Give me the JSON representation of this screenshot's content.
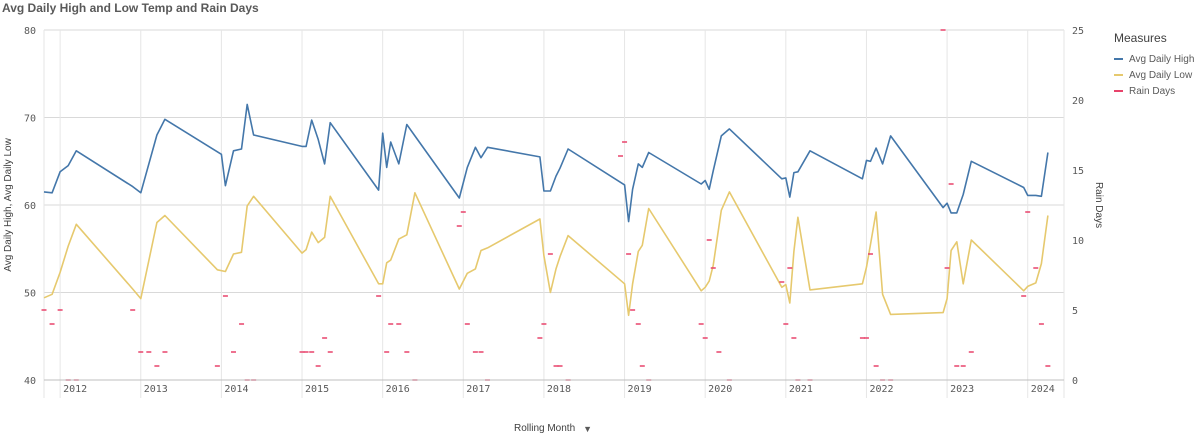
{
  "title": "Avg Daily High and Low Temp and Rain Days",
  "legend": {
    "title": "Measures",
    "items": [
      {
        "label": "Avg Daily High",
        "color": "#4477aa"
      },
      {
        "label": "Avg Daily Low",
        "color": "#e6c96e"
      },
      {
        "label": "Rain Days",
        "color": "#e8436b"
      }
    ]
  },
  "x_axis_label": "Rolling Month",
  "chart_data": {
    "type": "line",
    "title": "Avg Daily High and Low Temp and Rain Days",
    "xlabel": "Rolling Month",
    "ylabel": "Avg Daily High, Avg Daily Low",
    "y2label": "Rain Days",
    "ylim": [
      40,
      80
    ],
    "y2lim": [
      0,
      25
    ],
    "yticks": [
      40,
      50,
      60,
      70,
      80
    ],
    "y2ticks": [
      0,
      5,
      10,
      15,
      20,
      25
    ],
    "xlim": [
      2011.8,
      2024.45
    ],
    "x_ticks": [
      2012,
      2013,
      2014,
      2015,
      2016,
      2017,
      2018,
      2019,
      2020,
      2021,
      2022,
      2023,
      2024
    ],
    "x_tick_labels": [
      "2012",
      "2013",
      "2014",
      "2015",
      "2016",
      "2017",
      "2018",
      "2019",
      "2020",
      "2021",
      "2022",
      "2023",
      "2024"
    ],
    "grid": true,
    "legend_position": "right",
    "series": [
      {
        "name": "Avg Daily High",
        "axis": "left",
        "style": "line",
        "color": "#4477aa",
        "x": [
          2011.8,
          2011.9,
          2012.0,
          2012.1,
          2012.2,
          2012.9,
          2013.0,
          2013.2,
          2013.3,
          2014.0,
          2014.05,
          2014.15,
          2014.25,
          2014.32,
          2014.4,
          2015.0,
          2015.05,
          2015.12,
          2015.2,
          2015.28,
          2015.35,
          2015.95,
          2016.0,
          2016.05,
          2016.1,
          2016.2,
          2016.3,
          2016.4,
          2016.95,
          2017.05,
          2017.15,
          2017.22,
          2017.3,
          2017.95,
          2018.0,
          2018.08,
          2018.15,
          2018.2,
          2018.3,
          2019.0,
          2019.05,
          2019.1,
          2019.17,
          2019.22,
          2019.3,
          2019.95,
          2020.0,
          2020.05,
          2020.1,
          2020.2,
          2020.3,
          2020.95,
          2021.0,
          2021.05,
          2021.1,
          2021.15,
          2021.3,
          2021.95,
          2022.0,
          2022.05,
          2022.12,
          2022.2,
          2022.3,
          2022.95,
          2023.0,
          2023.05,
          2023.12,
          2023.2,
          2023.3,
          2023.95,
          2024.0,
          2024.1,
          2024.17,
          2024.25
        ],
        "values": [
          61.5,
          61.4,
          63.8,
          64.5,
          66.2,
          62.1,
          61.4,
          68.0,
          69.8,
          65.8,
          62.2,
          66.2,
          66.4,
          71.5,
          68.0,
          66.7,
          66.7,
          69.7,
          67.5,
          64.7,
          69.4,
          61.7,
          68.2,
          64.3,
          67.2,
          64.7,
          69.2,
          67.9,
          60.8,
          64.3,
          66.6,
          65.4,
          66.6,
          65.5,
          61.6,
          61.6,
          63.3,
          64.2,
          66.4,
          62.3,
          58.1,
          61.8,
          64.7,
          64.3,
          66.0,
          62.4,
          62.8,
          61.8,
          63.9,
          67.9,
          68.7,
          63.0,
          63.1,
          60.9,
          63.7,
          63.8,
          66.2,
          63.0,
          65.1,
          65.0,
          66.5,
          64.7,
          67.9,
          59.7,
          60.2,
          59.1,
          59.1,
          61.2,
          65.0,
          62.0,
          61.1,
          61.1,
          61.0,
          66.0
        ]
      },
      {
        "name": "Avg Daily Low",
        "axis": "left",
        "style": "line",
        "color": "#e6c96e",
        "x": [
          2011.8,
          2011.9,
          2012.0,
          2012.1,
          2012.2,
          2012.9,
          2013.0,
          2013.2,
          2013.3,
          2013.95,
          2014.05,
          2014.15,
          2014.25,
          2014.32,
          2014.4,
          2015.0,
          2015.05,
          2015.12,
          2015.2,
          2015.28,
          2015.35,
          2015.95,
          2016.0,
          2016.05,
          2016.1,
          2016.2,
          2016.3,
          2016.4,
          2016.95,
          2017.05,
          2017.15,
          2017.22,
          2017.3,
          2017.95,
          2018.0,
          2018.08,
          2018.15,
          2018.2,
          2018.3,
          2019.0,
          2019.05,
          2019.1,
          2019.17,
          2019.22,
          2019.3,
          2019.95,
          2020.0,
          2020.05,
          2020.1,
          2020.2,
          2020.3,
          2020.95,
          2021.0,
          2021.05,
          2021.1,
          2021.15,
          2021.3,
          2021.95,
          2022.0,
          2022.05,
          2022.12,
          2022.2,
          2022.3,
          2022.95,
          2023.0,
          2023.05,
          2023.12,
          2023.2,
          2023.3,
          2023.95,
          2024.0,
          2024.1,
          2024.17,
          2024.25
        ],
        "values": [
          49.4,
          49.8,
          52.3,
          55.3,
          57.8,
          50.4,
          49.3,
          58.0,
          58.8,
          52.6,
          52.4,
          54.4,
          54.6,
          59.9,
          61.0,
          54.5,
          54.9,
          56.9,
          55.7,
          56.3,
          61.0,
          51.0,
          51.0,
          53.4,
          53.7,
          56.1,
          56.6,
          61.4,
          50.4,
          52.2,
          52.7,
          54.8,
          55.1,
          58.4,
          54.2,
          50.0,
          52.7,
          54.1,
          56.5,
          51.0,
          47.4,
          51.0,
          54.7,
          55.4,
          59.6,
          50.2,
          50.6,
          51.3,
          53.1,
          59.4,
          61.5,
          50.6,
          50.9,
          48.8,
          54.7,
          58.6,
          50.3,
          51.0,
          52.9,
          55.5,
          59.2,
          49.8,
          47.5,
          47.7,
          49.3,
          54.8,
          55.8,
          51.0,
          56.0,
          50.2,
          50.7,
          51.1,
          53.3,
          58.8
        ]
      },
      {
        "name": "Rain Days",
        "axis": "right",
        "style": "dash-marker",
        "color": "#e8436b",
        "x": [
          2011.8,
          2011.9,
          2012.0,
          2012.1,
          2012.2,
          2012.9,
          2013.0,
          2013.1,
          2013.2,
          2013.3,
          2013.95,
          2014.05,
          2014.15,
          2014.25,
          2014.32,
          2014.4,
          2015.0,
          2015.05,
          2015.12,
          2015.2,
          2015.28,
          2015.35,
          2015.95,
          2016.05,
          2016.1,
          2016.2,
          2016.3,
          2016.4,
          2016.95,
          2017.0,
          2017.05,
          2017.15,
          2017.22,
          2017.3,
          2017.95,
          2018.0,
          2018.08,
          2018.15,
          2018.2,
          2018.3,
          2018.95,
          2019.0,
          2019.05,
          2019.1,
          2019.17,
          2019.22,
          2019.3,
          2019.95,
          2020.0,
          2020.05,
          2020.1,
          2020.17,
          2020.3,
          2020.95,
          2021.0,
          2021.05,
          2021.1,
          2021.15,
          2021.3,
          2021.95,
          2022.0,
          2022.05,
          2022.12,
          2022.2,
          2022.3,
          2022.95,
          2023.0,
          2023.05,
          2023.12,
          2023.2,
          2023.3,
          2023.95,
          2024.0,
          2024.1,
          2024.17,
          2024.25
        ],
        "values": [
          5,
          4,
          5,
          0,
          0,
          5,
          2,
          2,
          1,
          2,
          1,
          6,
          2,
          4,
          0,
          0,
          2,
          2,
          2,
          1,
          3,
          2,
          6,
          2,
          4,
          4,
          2,
          0,
          11,
          12,
          4,
          2,
          2,
          0,
          3,
          4,
          9,
          1,
          1,
          0,
          16,
          17,
          9,
          5,
          4,
          1,
          0,
          4,
          3,
          10,
          8,
          2,
          0,
          7,
          4,
          8,
          3,
          0,
          0,
          3,
          3,
          9,
          1,
          0,
          0,
          25,
          8,
          14,
          1,
          1,
          2,
          6,
          12,
          8,
          4,
          1
        ]
      }
    ]
  }
}
